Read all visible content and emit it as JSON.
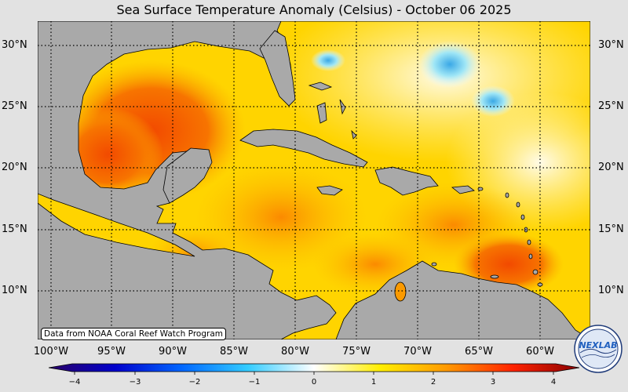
{
  "title": "Sea Surface Temperature Anomaly (Celsius) - October 06 2025",
  "credit": "Data from NOAA Coral Reef Watch Program",
  "lat_labels": [
    "30°N",
    "25°N",
    "20°N",
    "15°N",
    "10°N"
  ],
  "lon_labels": [
    "100°W",
    "95°W",
    "90°W",
    "85°W",
    "80°W",
    "75°W",
    "70°W",
    "65°W",
    "60°W"
  ],
  "colorbar": {
    "min": -4,
    "max": 4,
    "ticks": [
      "−4",
      "−3",
      "−2",
      "−1",
      "0",
      "1",
      "2",
      "3",
      "4"
    ],
    "colors": [
      "#2a0066",
      "#0000cc",
      "#0066ff",
      "#33ccff",
      "#ffffff",
      "#ffee00",
      "#ff9900",
      "#ff2200",
      "#880000"
    ]
  },
  "logo": {
    "text": "NEXLAB"
  },
  "colors": {
    "land": "#a9a9a9",
    "background": "#e2e2e2",
    "warm": "#ffdf00",
    "hot": "#f04e00"
  }
}
